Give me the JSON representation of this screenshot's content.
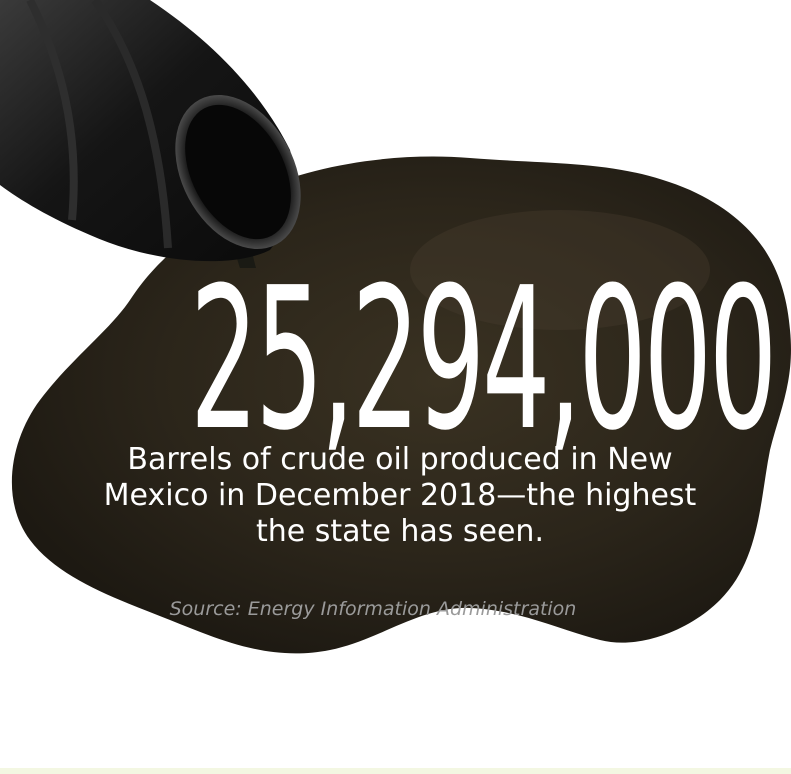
{
  "stat": {
    "figure": "25,294,000",
    "caption_lines": [
      "Barrels of crude oil produced in New",
      "Mexico in December 2018—the highest",
      "the state has seen."
    ],
    "source": "Source: Energy Information Administration"
  },
  "colors": {
    "text": "#ffffff",
    "source_text": "#9a9a9a",
    "oil": "#2a2418",
    "barrel": "#161616",
    "footer_band": "#f3f7e2"
  },
  "imagery": {
    "main": "oil-barrel-spill-photo"
  }
}
